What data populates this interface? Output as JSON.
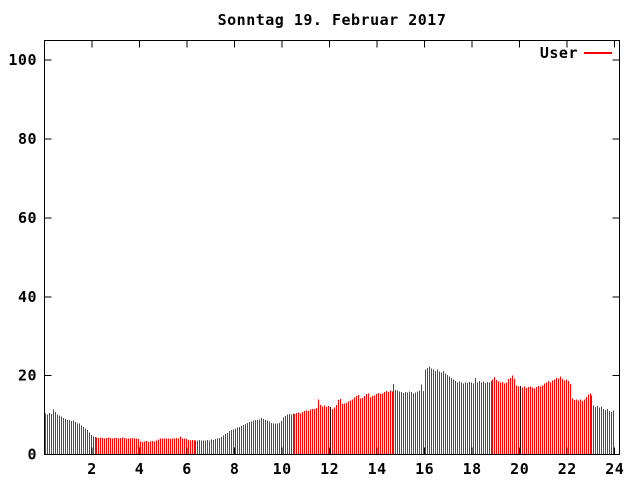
{
  "window": {
    "background": "#ffffff"
  },
  "title": "Sonntag 19. Februar 2017",
  "legend": {
    "label": "User"
  },
  "chart_data": {
    "type": "bar",
    "title": "Sonntag 19. Februar 2017",
    "xlabel": "",
    "ylabel": "",
    "xlim": [
      0,
      24.2
    ],
    "ylim": [
      0,
      105
    ],
    "xticks": [
      2,
      4,
      6,
      8,
      10,
      12,
      14,
      16,
      18,
      20,
      22,
      24
    ],
    "yticks": [
      0,
      20,
      40,
      60,
      80,
      100
    ],
    "grid": false,
    "legend_position": "top-right",
    "axis_color": "#000000",
    "background_color": "#ffffff",
    "tick_style": "inward-mirrored",
    "series": [
      {
        "name": "User",
        "color": "#ff0000",
        "start_hour": 0,
        "interval_minutes": 5,
        "values": [
          10.4,
          10.2,
          10.5,
          10.3,
          11.4,
          10.8,
          10.2,
          9.9,
          9.6,
          9.3,
          9.0,
          8.8,
          8.8,
          8.5,
          8.6,
          8.2,
          7.8,
          7.9,
          7.4,
          7.0,
          6.6,
          6.2,
          5.6,
          5.0,
          4.6,
          4.4,
          4.3,
          4.2,
          4.3,
          4.2,
          4.1,
          4.2,
          4.3,
          4.2,
          4.1,
          4.2,
          4.2,
          4.1,
          4.2,
          4.3,
          4.2,
          4.1,
          4.0,
          4.1,
          4.2,
          4.1,
          4.0,
          3.9,
          3.3,
          3.2,
          3.3,
          3.4,
          3.2,
          3.3,
          3.4,
          3.3,
          3.6,
          3.8,
          4.0,
          4.1,
          4.0,
          4.1,
          4.0,
          3.9,
          4.0,
          4.1,
          4.2,
          4.0,
          4.6,
          4.1,
          4.0,
          3.9,
          3.7,
          3.6,
          3.7,
          3.6,
          3.5,
          3.6,
          3.7,
          3.6,
          3.5,
          3.6,
          3.7,
          3.6,
          3.8,
          3.7,
          3.9,
          4.0,
          4.2,
          4.4,
          4.8,
          5.2,
          5.5,
          5.9,
          6.2,
          6.4,
          6.6,
          6.8,
          7.0,
          7.2,
          7.5,
          7.7,
          8.0,
          8.2,
          8.4,
          8.6,
          8.7,
          8.8,
          8.9,
          9.2,
          9.0,
          8.7,
          8.6,
          8.4,
          8.0,
          7.8,
          7.9,
          7.8,
          8.0,
          8.5,
          9.4,
          9.8,
          10.1,
          10.3,
          10.2,
          10.4,
          10.3,
          10.5,
          10.7,
          10.4,
          10.8,
          11.0,
          11.2,
          11.0,
          11.4,
          11.6,
          11.5,
          11.8,
          13.9,
          12.6,
          12.2,
          12.4,
          12.1,
          12.3,
          12.0,
          11.6,
          11.9,
          12.6,
          13.8,
          14.1,
          12.8,
          12.9,
          13.1,
          13.4,
          13.7,
          13.9,
          14.4,
          14.8,
          15.1,
          14.2,
          14.3,
          14.9,
          15.3,
          15.5,
          14.5,
          14.8,
          15.0,
          15.4,
          15.6,
          15.3,
          15.5,
          15.8,
          16.1,
          15.9,
          16.2,
          16.0,
          17.9,
          16.4,
          16.2,
          16.0,
          15.8,
          15.6,
          15.9,
          15.7,
          16.0,
          15.8,
          15.5,
          15.7,
          16.0,
          16.2,
          17.7,
          16.1,
          21.5,
          22.0,
          22.3,
          21.8,
          21.5,
          21.2,
          21.6,
          21.0,
          20.8,
          21.2,
          20.5,
          20.2,
          19.8,
          19.4,
          19.0,
          18.6,
          18.3,
          18.5,
          18.2,
          18.0,
          18.3,
          18.1,
          18.4,
          18.2,
          18.0,
          19.4,
          18.3,
          18.6,
          18.2,
          18.5,
          18.1,
          18.4,
          18.2,
          18.6,
          19.0,
          19.6,
          18.9,
          18.5,
          18.2,
          18.4,
          18.0,
          18.3,
          19.1,
          19.4,
          20.0,
          19.2,
          17.5,
          17.2,
          17.4,
          17.0,
          17.2,
          16.9,
          17.1,
          17.3,
          17.0,
          16.8,
          17.1,
          17.4,
          17.2,
          17.5,
          18.0,
          18.3,
          18.6,
          18.2,
          18.8,
          19.0,
          19.4,
          19.3,
          19.8,
          19.2,
          18.8,
          19.0,
          18.7,
          17.9,
          14.2,
          13.8,
          14.0,
          13.7,
          13.9,
          13.6,
          14.0,
          14.6,
          15.2,
          15.5,
          15.0,
          12.4,
          12.1,
          12.3,
          11.9,
          12.2,
          11.6,
          11.3,
          11.5,
          11.0,
          10.8,
          11.2
        ]
      }
    ],
    "marker_bars": {
      "color": "#000000",
      "indices": [
        144,
        240
      ],
      "hours": [
        12,
        20
      ]
    }
  }
}
